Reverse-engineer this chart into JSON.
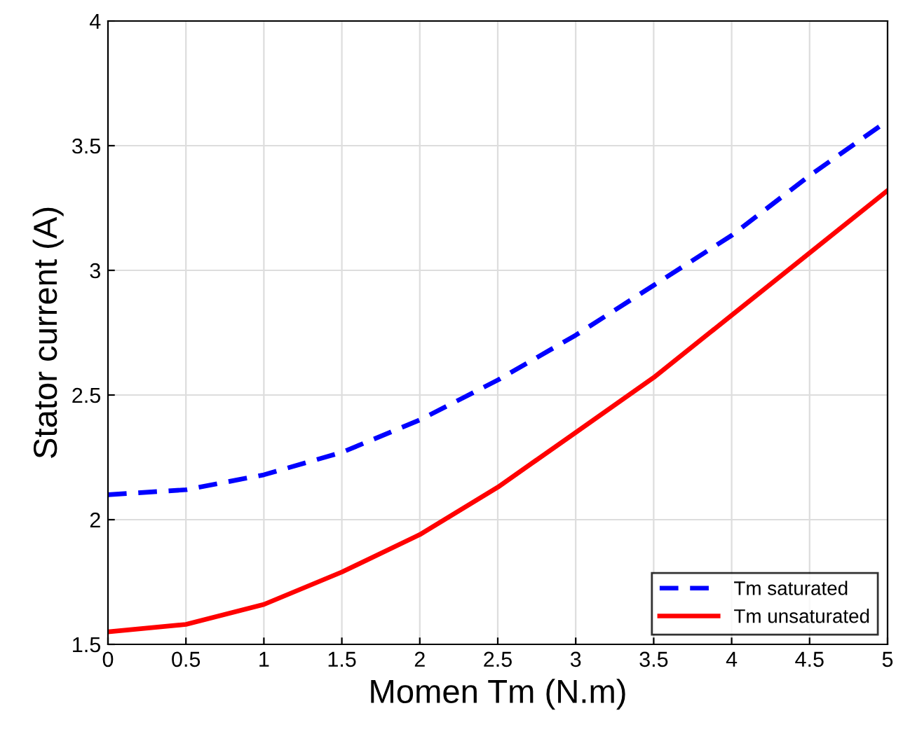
{
  "chart_data": {
    "type": "line",
    "xlabel": "Momen Tm (N.m)",
    "ylabel": "Stator current (A)",
    "x": [
      0,
      0.5,
      1,
      1.5,
      2,
      2.5,
      3,
      3.5,
      4,
      4.5,
      5
    ],
    "series": [
      {
        "name": "Tm saturated",
        "color": "#0000ff",
        "line_style": "dashed",
        "values": [
          2.1,
          2.12,
          2.18,
          2.27,
          2.4,
          2.56,
          2.74,
          2.94,
          3.14,
          3.38,
          3.6
        ]
      },
      {
        "name": "Tm unsaturated",
        "color": "#ff0000",
        "line_style": "solid",
        "values": [
          1.55,
          1.58,
          1.66,
          1.79,
          1.94,
          2.13,
          2.35,
          2.57,
          2.82,
          3.07,
          3.32
        ]
      }
    ],
    "xlim": [
      0,
      5
    ],
    "xticks": [
      0,
      0.5,
      1,
      1.5,
      2,
      2.5,
      3,
      3.5,
      4,
      4.5,
      5
    ],
    "ylim": [
      1.5,
      4
    ],
    "yticks": [
      1.5,
      2,
      2.5,
      3,
      3.5,
      4
    ],
    "grid": true,
    "legend": "bottom right",
    "marker": "none"
  }
}
